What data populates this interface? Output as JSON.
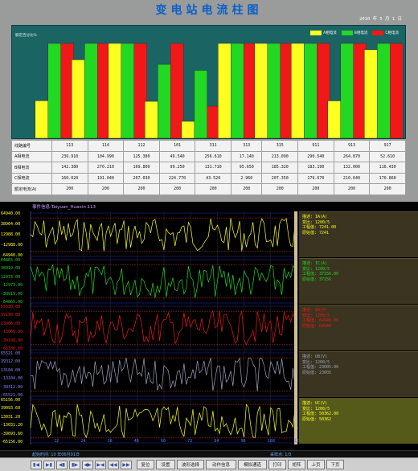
{
  "header": {
    "title": "变电站电流柱图",
    "date": "2010  年  5  月  1  日"
  },
  "chart_data": {
    "type": "bar",
    "caption": "额定百分比%",
    "categories": [
      "113",
      "114",
      "112",
      "101",
      "311",
      "313",
      "315",
      "911",
      "913",
      "917"
    ],
    "series": [
      {
        "name": "A相电流",
        "color": "#ffff20",
        "values": [
          39.5,
          82.7,
          100,
          38.9,
          17.8,
          100,
          100,
          100,
          39.4,
          93.4
        ]
      },
      {
        "name": "B相电流",
        "color": "#22d822",
        "values": [
          100,
          100,
          100,
          77.9,
          71.6,
          100,
          100,
          100,
          100,
          100
        ]
      },
      {
        "name": "C相电流",
        "color": "#f01818",
        "values": [
          100,
          100,
          100,
          100,
          33.8,
          100,
          100,
          100,
          100,
          100
        ]
      }
    ],
    "ylim": [
      0,
      100
    ]
  },
  "table": {
    "row_headers": [
      "线路编号",
      "A相电流",
      "B相电流",
      "C相电流",
      "额定电流(A)"
    ],
    "rows": [
      [
        "113",
        "114",
        "112",
        "101",
        "311",
        "313",
        "315",
        "911",
        "913",
        "917"
      ],
      [
        "236.910",
        "104.990",
        "125.380",
        "49.540",
        "256.610",
        "17.140",
        "213.090",
        "290.540",
        "264.870",
        "52.610"
      ],
      [
        "142.380",
        "270.210",
        "169.800",
        "99.250",
        "131.710",
        "95.650",
        "185.320",
        "183.190",
        "132.000",
        "116.430"
      ],
      [
        "160.020",
        "191.040",
        "267.030",
        "224.770",
        "43.520",
        "2.960",
        "207.350",
        "179.670",
        "210.640",
        "170.860"
      ],
      [
        "200",
        "200",
        "200",
        "200",
        "200",
        "200",
        "200",
        "200",
        "200",
        "200"
      ]
    ]
  },
  "wave": {
    "title": "事件信息:Taiyuan_Huaxin 113",
    "y_ticks": [
      {
        "label": "64940.00",
        "color": "#ffff20"
      },
      {
        "label": "38964.00",
        "color": "#ffff20"
      },
      {
        "label": "12988.00",
        "color": "#ffff20"
      },
      {
        "label": "-12988.00",
        "color": "#ffff20"
      },
      {
        "label": "-64940.00",
        "color": "#ffff20"
      },
      {
        "label": "64865.00",
        "color": "#22d822"
      },
      {
        "label": "38919.00",
        "color": "#22d822"
      },
      {
        "label": "12973.00",
        "color": "#22d822"
      },
      {
        "label": "-12973.00",
        "color": "#22d822"
      },
      {
        "label": "-38919.00",
        "color": "#22d822"
      },
      {
        "label": "-64865.00",
        "color": "#22d822"
      },
      {
        "label": "65330.00",
        "color": "#f01818"
      },
      {
        "label": "39198.00",
        "color": "#f01818"
      },
      {
        "label": "13066.00",
        "color": "#f01818"
      },
      {
        "label": "-13066.00",
        "color": "#f01818"
      },
      {
        "label": "-39198.00",
        "color": "#f01818"
      },
      {
        "label": "-65330.00",
        "color": "#f01818"
      },
      {
        "label": "65521.00",
        "color": "#8a8aff"
      },
      {
        "label": "39312.00",
        "color": "#8a8aff"
      },
      {
        "label": "13104.00",
        "color": "#8a8aff"
      },
      {
        "label": "-13104.00",
        "color": "#8a8aff"
      },
      {
        "label": "-39312.00",
        "color": "#8a8aff"
      },
      {
        "label": "-65521.00",
        "color": "#8a8aff"
      },
      {
        "label": "65156.00",
        "color": "#ffff20"
      },
      {
        "label": "39093.60",
        "color": "#ffff20"
      },
      {
        "label": "13031.20",
        "color": "#ffff20"
      },
      {
        "label": "-13031.20",
        "color": "#ffff20"
      },
      {
        "label": "-39093.60",
        "color": "#ffff20"
      },
      {
        "label": "-65156.00",
        "color": "#ffff20"
      }
    ],
    "x_ticks": [
      "12",
      "24",
      "36",
      "48",
      "60",
      "72",
      "84",
      "96",
      "108",
      "12"
    ],
    "channels": [
      {
        "color": "#ffff20",
        "lines": [
          "描述: IA(A)",
          "变比: 1200/5",
          "工程值: 7241.00",
          "原始值: 7241"
        ]
      },
      {
        "color": "#22d822",
        "lines": [
          "描述: IC(A)",
          "变比: 1200/5",
          "工程值: 37156.00",
          "原始值: 37156"
        ]
      },
      {
        "color": "#f01818",
        "lines": [
          "描述: IA(V)",
          "变比: 1200/5",
          "工程值: 64946.00",
          "原始值: 64946"
        ]
      },
      {
        "color": "#a0a0c0",
        "lines": [
          "描述: UB(V)",
          "变比: 1200/5",
          "工程值: 23005.00",
          "原始值: 23005"
        ]
      },
      {
        "color": "#ffff20",
        "lines": [
          "描述: UC(V)",
          "变比: 1200/5",
          "工程值: 50362.00",
          "原始值: 50362"
        ]
      }
    ],
    "status_left": "起始时间: 10 年06月01日",
    "status_right": "采样点: 1/3"
  },
  "toolbar": {
    "nav_icons": [
      "▮◀",
      "▶▮",
      "◀▮",
      "▮▶",
      "◀▶",
      "▶◀",
      "◀◀",
      "▶▶"
    ],
    "buttons": [
      "复位",
      "设置",
      "波形选择",
      "动作信息",
      "模拟通道",
      "打印",
      "矩阵",
      "上页",
      "下页"
    ]
  }
}
